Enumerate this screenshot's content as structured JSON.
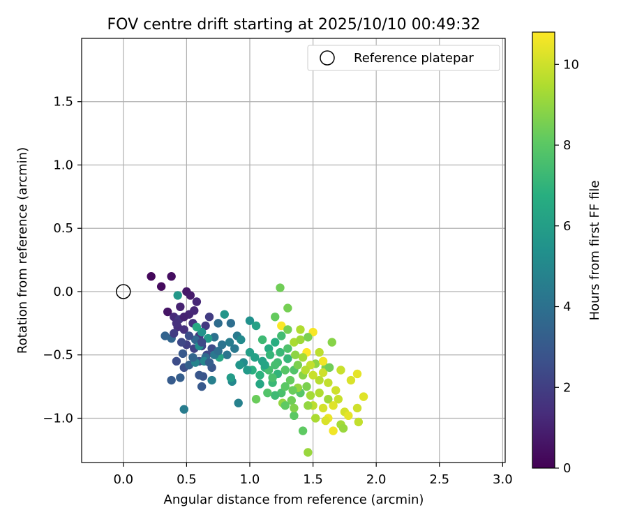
{
  "chart_data": {
    "type": "scatter",
    "title": "FOV centre drift starting at 2025/10/10 00:49:32",
    "xlabel": "Angular distance from reference (arcmin)",
    "ylabel": "Rotation from reference (arcmin)",
    "xlim": [
      -0.33,
      3.02
    ],
    "ylim": [
      -1.35,
      2.0
    ],
    "xticks": [
      0.0,
      0.5,
      1.0,
      1.5,
      2.0,
      2.5,
      3.0
    ],
    "yticks": [
      -1.0,
      -0.5,
      0.0,
      0.5,
      1.0,
      1.5
    ],
    "xtick_labels": [
      "0.0",
      "0.5",
      "1.0",
      "1.5",
      "2.0",
      "2.5",
      "3.0"
    ],
    "ytick_labels": [
      "−1.0",
      "−0.5",
      "0.0",
      "0.5",
      "1.0",
      "1.5"
    ],
    "grid": true,
    "legend": {
      "position": "top-right",
      "label": "Reference platepar"
    },
    "reference_point": {
      "x": 0.0,
      "y": 0.0
    },
    "colorbar": {
      "label": "Hours from first FF file",
      "range": [
        0,
        10.8
      ],
      "ticks": [
        0,
        2,
        4,
        6,
        8,
        10
      ],
      "tick_labels": [
        "0",
        "2",
        "4",
        "6",
        "8",
        "10"
      ],
      "colormap": "viridis"
    },
    "points": [
      [
        0.22,
        0.12,
        0.2
      ],
      [
        0.3,
        0.04,
        0.3
      ],
      [
        0.38,
        0.12,
        0.4
      ],
      [
        0.35,
        -0.16,
        0.6
      ],
      [
        0.5,
        0.0,
        0.7
      ],
      [
        0.53,
        -0.03,
        0.8
      ],
      [
        0.45,
        -0.12,
        1.0
      ],
      [
        0.52,
        -0.18,
        1.1
      ],
      [
        0.58,
        -0.08,
        1.2
      ],
      [
        0.4,
        -0.2,
        1.3
      ],
      [
        0.43,
        -0.28,
        1.4
      ],
      [
        0.48,
        -0.3,
        1.5
      ],
      [
        0.55,
        -0.25,
        1.6
      ],
      [
        0.6,
        -0.35,
        1.7
      ],
      [
        0.65,
        -0.27,
        1.8
      ],
      [
        0.68,
        -0.2,
        1.9
      ],
      [
        0.5,
        -0.42,
        2.0
      ],
      [
        0.56,
        -0.45,
        2.1
      ],
      [
        0.62,
        -0.43,
        2.2
      ],
      [
        0.66,
        -0.5,
        2.3
      ],
      [
        0.7,
        -0.45,
        2.4
      ],
      [
        0.42,
        -0.55,
        2.5
      ],
      [
        0.48,
        -0.6,
        2.6
      ],
      [
        0.6,
        -0.55,
        2.7
      ],
      [
        0.63,
        -0.67,
        2.8
      ],
      [
        0.7,
        -0.6,
        2.9
      ],
      [
        0.62,
        -0.75,
        3.0
      ],
      [
        0.38,
        -0.7,
        3.1
      ],
      [
        0.45,
        -0.68,
        3.2
      ],
      [
        0.52,
        -0.58,
        3.3
      ],
      [
        0.33,
        -0.35,
        3.4
      ],
      [
        0.38,
        -0.37,
        3.5
      ],
      [
        0.57,
        -0.38,
        3.6
      ],
      [
        0.65,
        -0.52,
        3.7
      ],
      [
        0.75,
        -0.25,
        3.8
      ],
      [
        0.85,
        -0.25,
        3.9
      ],
      [
        0.72,
        -0.36,
        4.0
      ],
      [
        0.78,
        -0.42,
        4.1
      ],
      [
        0.82,
        -0.5,
        4.2
      ],
      [
        0.88,
        -0.45,
        4.3
      ],
      [
        0.9,
        -0.35,
        4.4
      ],
      [
        0.48,
        -0.93,
        4.5
      ],
      [
        0.7,
        -0.7,
        4.6
      ],
      [
        0.91,
        -0.88,
        4.7
      ],
      [
        0.57,
        -0.56,
        4.8
      ],
      [
        0.64,
        -0.55,
        4.9
      ],
      [
        0.86,
        -0.71,
        5.0
      ],
      [
        0.93,
        -0.38,
        5.1
      ],
      [
        0.95,
        -0.56,
        5.2
      ],
      [
        0.6,
        -0.43,
        5.3
      ],
      [
        1.0,
        -0.23,
        5.4
      ],
      [
        0.62,
        -0.32,
        5.5
      ],
      [
        0.8,
        -0.18,
        5.6
      ],
      [
        0.43,
        -0.03,
        5.7
      ],
      [
        0.67,
        -0.37,
        5.8
      ],
      [
        0.85,
        -0.68,
        5.9
      ],
      [
        1.0,
        -0.48,
        6.0
      ],
      [
        1.05,
        -0.27,
        6.1
      ],
      [
        1.1,
        -0.55,
        6.2
      ],
      [
        0.76,
        -0.52,
        6.3
      ],
      [
        1.08,
        -0.73,
        6.4
      ],
      [
        0.58,
        -0.28,
        6.5
      ],
      [
        1.15,
        -0.45,
        6.6
      ],
      [
        1.2,
        -0.4,
        6.7
      ],
      [
        1.02,
        -0.62,
        6.8
      ],
      [
        1.12,
        -0.6,
        6.9
      ],
      [
        1.22,
        -0.65,
        7.0
      ],
      [
        1.3,
        -0.53,
        7.1
      ],
      [
        1.18,
        -0.72,
        7.2
      ],
      [
        1.1,
        -0.38,
        7.3
      ],
      [
        1.25,
        -0.35,
        7.4
      ],
      [
        1.15,
        -0.62,
        7.5
      ],
      [
        1.25,
        -0.8,
        7.6
      ],
      [
        1.3,
        -0.45,
        7.7
      ],
      [
        1.35,
        -0.62,
        7.8
      ],
      [
        1.4,
        -0.8,
        7.9
      ],
      [
        1.35,
        -0.98,
        8.0
      ],
      [
        1.42,
        -1.1,
        8.1
      ],
      [
        1.2,
        -0.2,
        8.2
      ],
      [
        1.05,
        -0.85,
        8.3
      ],
      [
        1.24,
        0.03,
        8.4
      ],
      [
        1.3,
        -0.13,
        8.5
      ],
      [
        1.45,
        -0.75,
        8.6
      ],
      [
        1.6,
        -0.6,
        8.7
      ],
      [
        1.65,
        -0.4,
        8.8
      ],
      [
        1.52,
        -0.57,
        8.9
      ],
      [
        1.26,
        -0.88,
        9.0
      ],
      [
        1.46,
        -1.27,
        9.1
      ],
      [
        1.62,
        -0.85,
        9.2
      ],
      [
        1.72,
        -1.05,
        9.3
      ],
      [
        1.35,
        -0.4,
        9.4
      ],
      [
        1.4,
        -0.3,
        9.5
      ],
      [
        1.55,
        -0.7,
        9.6
      ],
      [
        1.5,
        -0.9,
        9.7
      ],
      [
        1.48,
        -0.58,
        9.8
      ],
      [
        1.7,
        -0.85,
        9.9
      ],
      [
        1.85,
        -0.92,
        10.0
      ],
      [
        1.75,
        -0.95,
        10.1
      ],
      [
        1.8,
        -0.7,
        10.2
      ],
      [
        1.9,
        -0.83,
        10.3
      ],
      [
        1.85,
        -0.65,
        10.4
      ],
      [
        1.62,
        -1.0,
        10.5
      ],
      [
        1.58,
        -0.55,
        10.6
      ],
      [
        1.5,
        -0.32,
        10.7
      ],
      [
        1.45,
        -0.48,
        10.8
      ],
      [
        1.25,
        -0.27,
        10.75
      ],
      [
        1.12,
        -0.58,
        6.3
      ],
      [
        1.16,
        -0.5,
        7.1
      ],
      [
        1.22,
        -0.56,
        7.4
      ],
      [
        1.28,
        -0.62,
        7.9
      ],
      [
        1.32,
        -0.7,
        8.2
      ],
      [
        1.38,
        -0.58,
        8.6
      ],
      [
        1.28,
        -0.75,
        8.0
      ],
      [
        1.2,
        -0.82,
        7.3
      ],
      [
        1.33,
        -0.86,
        8.4
      ],
      [
        1.42,
        -0.66,
        8.8
      ],
      [
        1.38,
        -0.76,
        9.0
      ],
      [
        1.48,
        -0.82,
        9.3
      ],
      [
        1.55,
        -0.8,
        9.5
      ],
      [
        1.62,
        -0.72,
        9.8
      ],
      [
        1.68,
        -0.78,
        10.0
      ],
      [
        1.58,
        -0.92,
        10.1
      ],
      [
        1.66,
        -0.9,
        10.3
      ],
      [
        1.72,
        -0.62,
        9.9
      ],
      [
        1.44,
        -0.62,
        9.6
      ],
      [
        1.36,
        -0.5,
        8.9
      ],
      [
        1.3,
        -0.3,
        8.5
      ],
      [
        1.4,
        -0.38,
        9.2
      ],
      [
        1.55,
        -0.48,
        9.7
      ],
      [
        1.18,
        -0.68,
        7.6
      ],
      [
        1.08,
        -0.66,
        6.9
      ],
      [
        1.24,
        -0.48,
        7.2
      ],
      [
        1.34,
        -0.78,
        8.3
      ],
      [
        1.46,
        -0.9,
        9.0
      ],
      [
        1.52,
        -1.0,
        9.4
      ],
      [
        1.6,
        -1.02,
        10.2
      ],
      [
        1.78,
        -0.98,
        10.4
      ],
      [
        1.66,
        -1.1,
        10.6
      ],
      [
        1.86,
        -1.03,
        9.8
      ],
      [
        1.74,
        -1.08,
        9.1
      ],
      [
        0.92,
        -0.58,
        5.6
      ],
      [
        0.98,
        -0.62,
        5.8
      ],
      [
        1.04,
        -0.52,
        6.1
      ],
      [
        0.72,
        -0.5,
        4.3
      ],
      [
        0.55,
        -0.52,
        3.5
      ],
      [
        0.47,
        -0.49,
        3.0
      ],
      [
        0.52,
        -0.35,
        2.6
      ],
      [
        0.46,
        -0.4,
        2.3
      ],
      [
        0.4,
        -0.33,
        1.9
      ],
      [
        0.44,
        -0.22,
        1.7
      ],
      [
        0.42,
        -0.25,
        1.5
      ],
      [
        0.56,
        -0.15,
        1.2
      ],
      [
        0.48,
        -0.2,
        1.0
      ],
      [
        0.6,
        -0.66,
        2.9
      ],
      [
        0.68,
        -0.56,
        3.2
      ],
      [
        0.75,
        -0.47,
        3.9
      ],
      [
        0.84,
        -0.4,
        4.5
      ],
      [
        0.62,
        -0.4,
        2.4
      ],
      [
        1.14,
        -0.8,
        7.8
      ],
      [
        1.28,
        -0.9,
        8.1
      ],
      [
        1.35,
        -0.92,
        8.7
      ],
      [
        1.2,
        -0.58,
        7.5
      ],
      [
        1.42,
        -0.52,
        9.3
      ],
      [
        1.5,
        -0.66,
        9.9
      ],
      [
        1.58,
        -0.64,
        10.0
      ],
      [
        1.63,
        -0.6,
        8.4
      ],
      [
        1.46,
        -0.36,
        8.6
      ]
    ]
  }
}
